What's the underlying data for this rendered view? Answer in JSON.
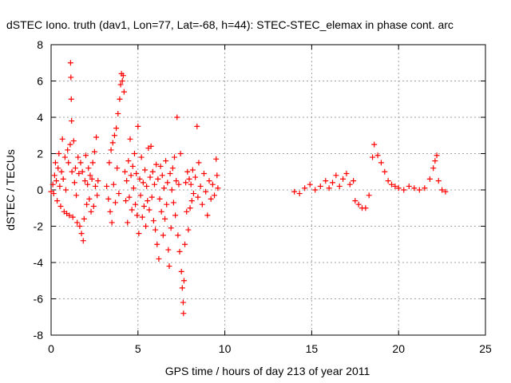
{
  "chart_data": {
    "type": "scatter",
    "title": "dSTEC Iono. truth (dav1, Lon=77, Lat=-68, h=44): STEC-STEC_elemax in phase cont. arc",
    "xlabel": "GPS time / hours of day 213 of year 2011",
    "ylabel": "dSTEC  / TECUs",
    "xlim": [
      0,
      25
    ],
    "ylim": [
      -8,
      8
    ],
    "xticks": [
      0,
      5,
      10,
      15,
      20,
      25
    ],
    "yticks": [
      -8,
      -6,
      -4,
      -2,
      0,
      2,
      4,
      6,
      8
    ],
    "grid": true,
    "marker": "+",
    "series": [
      {
        "color": "#ff0000",
        "points": [
          [
            0.0,
            -0.1
          ],
          [
            0.1,
            0.3
          ],
          [
            0.15,
            -0.2
          ],
          [
            0.2,
            0.8
          ],
          [
            0.25,
            1.5
          ],
          [
            0.3,
            0.5
          ],
          [
            0.35,
            -0.6
          ],
          [
            0.4,
            1.2
          ],
          [
            0.45,
            2.0
          ],
          [
            0.5,
            0.2
          ],
          [
            0.55,
            -0.9
          ],
          [
            0.6,
            1.0
          ],
          [
            0.65,
            2.8
          ],
          [
            0.7,
            0.6
          ],
          [
            0.75,
            -1.2
          ],
          [
            0.8,
            1.8
          ],
          [
            0.85,
            0.0
          ],
          [
            0.9,
            -1.3
          ],
          [
            0.95,
            2.2
          ],
          [
            1.0,
            1.5
          ],
          [
            1.05,
            -1.4
          ],
          [
            1.1,
            2.5
          ],
          [
            1.12,
            7.0
          ],
          [
            1.14,
            6.2
          ],
          [
            1.16,
            5.0
          ],
          [
            1.18,
            3.8
          ],
          [
            1.2,
            1.0
          ],
          [
            1.25,
            -1.5
          ],
          [
            1.3,
            2.7
          ],
          [
            1.35,
            0.4
          ],
          [
            1.4,
            1.2
          ],
          [
            1.45,
            -0.3
          ],
          [
            1.5,
            -1.8
          ],
          [
            1.55,
            1.8
          ],
          [
            1.6,
            0.9
          ],
          [
            1.65,
            -2.0
          ],
          [
            1.7,
            1.5
          ],
          [
            1.75,
            -2.4
          ],
          [
            1.8,
            1.0
          ],
          [
            1.85,
            -2.8
          ],
          [
            1.9,
            -1.6
          ],
          [
            1.95,
            0.5
          ],
          [
            2.0,
            1.9
          ],
          [
            2.05,
            -0.8
          ],
          [
            2.1,
            0.3
          ],
          [
            2.15,
            1.2
          ],
          [
            2.2,
            -0.5
          ],
          [
            2.25,
            0.8
          ],
          [
            2.3,
            -1.2
          ],
          [
            2.35,
            0.6
          ],
          [
            2.4,
            1.5
          ],
          [
            2.45,
            -0.9
          ],
          [
            2.5,
            2.1
          ],
          [
            2.55,
            0.2
          ],
          [
            2.6,
            2.9
          ],
          [
            2.65,
            -0.3
          ],
          [
            2.7,
            0.5
          ],
          [
            3.2,
            0.2
          ],
          [
            3.3,
            -0.5
          ],
          [
            3.35,
            1.5
          ],
          [
            3.4,
            -1.2
          ],
          [
            3.45,
            2.2
          ],
          [
            3.5,
            -1.8
          ],
          [
            3.55,
            2.6
          ],
          [
            3.6,
            0.3
          ],
          [
            3.65,
            3.0
          ],
          [
            3.7,
            -0.7
          ],
          [
            3.75,
            3.4
          ],
          [
            3.8,
            1.2
          ],
          [
            3.85,
            4.2
          ],
          [
            3.9,
            -0.2
          ],
          [
            3.95,
            5.0
          ],
          [
            4.0,
            5.8
          ],
          [
            4.05,
            6.4
          ],
          [
            4.1,
            6.0
          ],
          [
            4.15,
            6.3
          ],
          [
            4.2,
            5.4
          ],
          [
            4.25,
            1.0
          ],
          [
            4.3,
            -0.6
          ],
          [
            4.35,
            0.5
          ],
          [
            4.4,
            -1.8
          ],
          [
            4.45,
            1.6
          ],
          [
            4.5,
            -0.4
          ],
          [
            4.55,
            2.8
          ],
          [
            4.6,
            0.8
          ],
          [
            4.65,
            -1.1
          ],
          [
            4.7,
            1.3
          ],
          [
            4.75,
            0.1
          ],
          [
            4.8,
            2.0
          ],
          [
            4.85,
            -0.8
          ],
          [
            4.9,
            0.9
          ],
          [
            4.95,
            -1.4
          ],
          [
            5.0,
            3.5
          ],
          [
            5.05,
            -2.4
          ],
          [
            5.1,
            0.6
          ],
          [
            5.15,
            -0.3
          ],
          [
            5.2,
            1.8
          ],
          [
            5.25,
            -1.5
          ],
          [
            5.3,
            0.4
          ],
          [
            5.35,
            -0.9
          ],
          [
            5.4,
            1.1
          ],
          [
            5.45,
            -2.0
          ],
          [
            5.5,
            0.2
          ],
          [
            5.55,
            -0.6
          ],
          [
            5.6,
            2.3
          ],
          [
            5.65,
            -1.1
          ],
          [
            5.7,
            0.7
          ],
          [
            5.75,
            2.4
          ],
          [
            5.8,
            -0.4
          ],
          [
            5.85,
            1.0
          ],
          [
            5.9,
            -1.7
          ],
          [
            5.95,
            0.3
          ],
          [
            6.0,
            -2.2
          ],
          [
            6.05,
            1.4
          ],
          [
            6.1,
            -3.0
          ],
          [
            6.15,
            0.6
          ],
          [
            6.2,
            -3.8
          ],
          [
            6.25,
            -0.5
          ],
          [
            6.3,
            1.3
          ],
          [
            6.35,
            -1.2
          ],
          [
            6.4,
            0.8
          ],
          [
            6.45,
            -2.5
          ],
          [
            6.5,
            0.1
          ],
          [
            6.55,
            -1.6
          ],
          [
            6.6,
            1.6
          ],
          [
            6.65,
            -0.8
          ],
          [
            6.7,
            0.4
          ],
          [
            6.75,
            -3.3
          ],
          [
            6.8,
            -4.2
          ],
          [
            6.85,
            0.9
          ],
          [
            6.9,
            -2.1
          ],
          [
            6.95,
            0.0
          ],
          [
            7.0,
            1.2
          ],
          [
            7.05,
            -0.7
          ],
          [
            7.1,
            1.8
          ],
          [
            7.15,
            -1.4
          ],
          [
            7.2,
            0.5
          ],
          [
            7.25,
            4.0
          ],
          [
            7.3,
            -2.5
          ],
          [
            7.35,
            0.3
          ],
          [
            7.4,
            -3.4
          ],
          [
            7.45,
            2.0
          ],
          [
            7.5,
            -4.5
          ],
          [
            7.55,
            -5.4
          ],
          [
            7.6,
            -6.2
          ],
          [
            7.62,
            -6.8
          ],
          [
            7.65,
            -5.0
          ],
          [
            7.7,
            -3.0
          ],
          [
            7.75,
            0.4
          ],
          [
            7.8,
            -1.2
          ],
          [
            7.85,
            1.0
          ],
          [
            7.9,
            -2.2
          ],
          [
            7.95,
            0.6
          ],
          [
            8.0,
            -1.0
          ],
          [
            8.05,
            0.3
          ],
          [
            8.1,
            -0.6
          ],
          [
            8.15,
            1.1
          ],
          [
            8.2,
            -0.2
          ],
          [
            8.3,
            0.7
          ],
          [
            8.4,
            3.5
          ],
          [
            8.45,
            -0.4
          ],
          [
            8.5,
            1.5
          ],
          [
            8.6,
            0.2
          ],
          [
            8.7,
            -0.8
          ],
          [
            8.8,
            0.9
          ],
          [
            8.9,
            -0.1
          ],
          [
            9.0,
            -1.4
          ],
          [
            9.1,
            0.5
          ],
          [
            9.2,
            -0.5
          ],
          [
            9.3,
            0.3
          ],
          [
            9.4,
            -0.3
          ],
          [
            9.5,
            1.7
          ],
          [
            9.55,
            0.8
          ],
          [
            9.6,
            0.1
          ],
          [
            14.0,
            -0.1
          ],
          [
            14.3,
            -0.2
          ],
          [
            14.6,
            0.1
          ],
          [
            14.9,
            0.3
          ],
          [
            15.2,
            0.0
          ],
          [
            15.5,
            0.2
          ],
          [
            15.8,
            0.5
          ],
          [
            16.0,
            0.1
          ],
          [
            16.2,
            0.4
          ],
          [
            16.4,
            0.8
          ],
          [
            16.6,
            0.2
          ],
          [
            16.8,
            0.6
          ],
          [
            17.0,
            0.9
          ],
          [
            17.2,
            0.3
          ],
          [
            17.4,
            0.5
          ],
          [
            17.5,
            -0.6
          ],
          [
            17.7,
            -0.8
          ],
          [
            17.9,
            -1.0
          ],
          [
            18.1,
            -1.0
          ],
          [
            18.3,
            -0.3
          ],
          [
            18.5,
            1.8
          ],
          [
            18.6,
            2.5
          ],
          [
            18.8,
            1.9
          ],
          [
            19.0,
            1.5
          ],
          [
            19.2,
            1.0
          ],
          [
            19.4,
            0.5
          ],
          [
            19.6,
            0.3
          ],
          [
            19.8,
            0.2
          ],
          [
            20.0,
            0.1
          ],
          [
            20.3,
            0.0
          ],
          [
            20.6,
            0.2
          ],
          [
            20.9,
            0.1
          ],
          [
            21.2,
            0.0
          ],
          [
            21.5,
            0.1
          ],
          [
            21.8,
            0.6
          ],
          [
            22.0,
            1.2
          ],
          [
            22.1,
            1.6
          ],
          [
            22.2,
            1.9
          ],
          [
            22.3,
            0.5
          ],
          [
            22.5,
            0.0
          ],
          [
            22.7,
            -0.1
          ]
        ]
      }
    ]
  }
}
